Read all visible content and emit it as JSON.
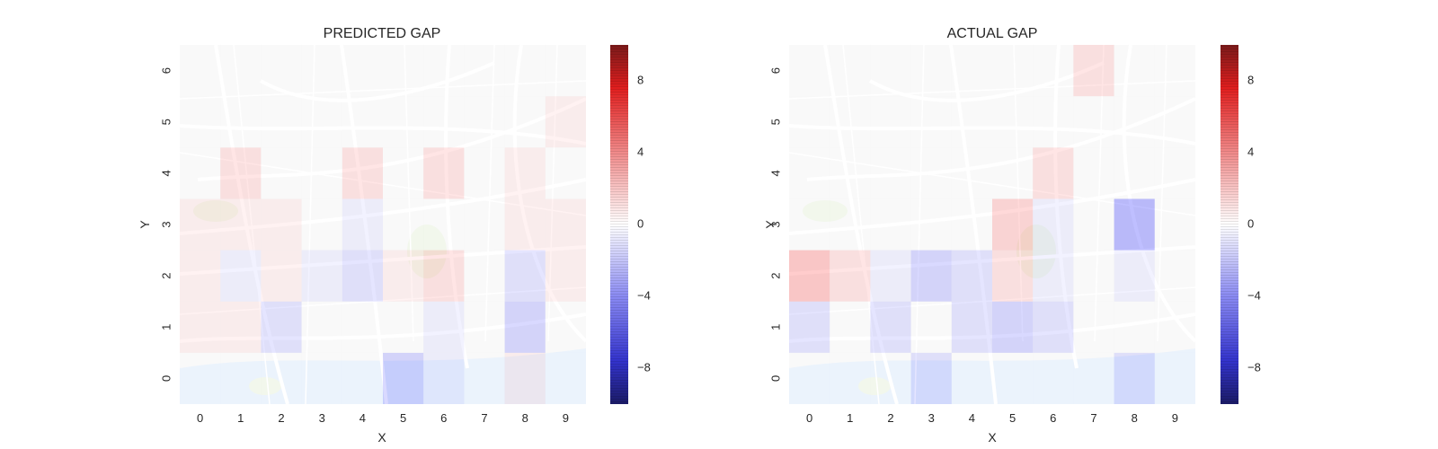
{
  "colors": {
    "positive": "#ff0000",
    "negative": "#0000ff",
    "zero": "#ffffff",
    "map_land": "#f2f2f2",
    "map_road": "#ffffff",
    "map_water": "#d7e6f8",
    "map_park": "#e4efd8",
    "map_label": "#9a9a9a"
  },
  "chart_data": [
    {
      "type": "heatmap",
      "title": "PREDICTED GAP",
      "xlabel": "X",
      "ylabel": "Y",
      "x": [
        0,
        1,
        2,
        3,
        4,
        5,
        6,
        7,
        8,
        9
      ],
      "y": [
        0,
        1,
        2,
        3,
        4,
        5,
        6
      ],
      "background": "street map",
      "colorscale": "seismic (blue-white-red)",
      "zlim": [
        -10,
        10
      ],
      "colorbar_ticks": [
        -8,
        -4,
        0,
        4,
        8
      ],
      "z": [
        [
          0,
          0,
          0,
          0,
          0,
          -3,
          -1,
          0,
          1,
          0
        ],
        [
          1,
          1,
          -2,
          0,
          0,
          0,
          -1,
          0,
          -3,
          0
        ],
        [
          1,
          -1,
          1,
          -1,
          -2,
          1,
          2,
          0,
          -2,
          1
        ],
        [
          1,
          1,
          1,
          0,
          -1,
          0,
          0,
          0,
          1,
          1
        ],
        [
          0,
          2,
          0,
          0,
          2,
          0,
          2,
          0,
          1,
          0
        ],
        [
          0,
          0,
          0,
          0,
          0,
          0,
          0,
          0,
          0,
          1
        ],
        [
          0,
          0,
          0,
          0,
          0,
          0,
          0,
          0,
          0,
          0
        ]
      ]
    },
    {
      "type": "heatmap",
      "title": "ACTUAL GAP",
      "xlabel": "X",
      "ylabel": "Y",
      "x": [
        0,
        1,
        2,
        3,
        4,
        5,
        6,
        7,
        8,
        9
      ],
      "y": [
        0,
        1,
        2,
        3,
        4,
        5,
        6
      ],
      "background": "street map",
      "colorscale": "seismic (blue-white-red)",
      "zlim": [
        -10,
        10
      ],
      "colorbar_ticks": [
        -8,
        -4,
        0,
        4,
        8
      ],
      "z": [
        [
          0,
          0,
          0,
          -2,
          0,
          0,
          0,
          0,
          -2,
          0
        ],
        [
          -2,
          0,
          -2,
          0,
          -2,
          -3,
          -2,
          0,
          0,
          0
        ],
        [
          4,
          2,
          -1,
          -3,
          -2,
          2,
          -1,
          0,
          -1,
          0
        ],
        [
          0,
          0,
          0,
          0,
          0,
          3,
          -1,
          0,
          -5,
          0
        ],
        [
          0,
          0,
          0,
          0,
          0,
          0,
          2,
          0,
          0,
          0
        ],
        [
          0,
          0,
          0,
          0,
          0,
          0,
          0,
          0,
          0,
          0
        ],
        [
          0,
          0,
          0,
          0,
          0,
          0,
          0,
          2,
          0,
          0
        ]
      ]
    }
  ]
}
